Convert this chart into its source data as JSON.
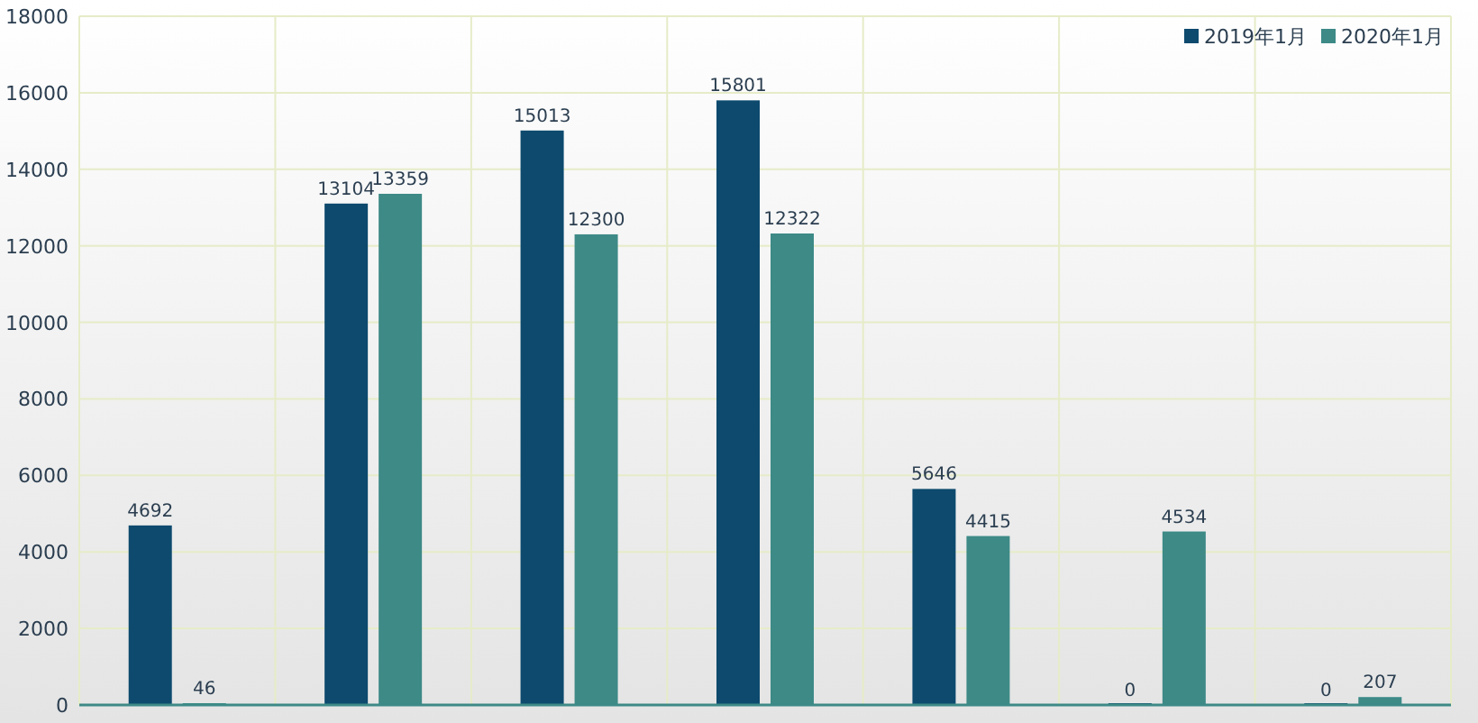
{
  "chart_data": {
    "type": "bar",
    "categories": [
      null,
      null,
      null,
      null,
      null,
      null,
      null
    ],
    "series": [
      {
        "name": "2019年1月",
        "color": "#0d4a6e",
        "values": [
          4692,
          13104,
          15013,
          15801,
          5646,
          0,
          0
        ]
      },
      {
        "name": "2020年1月",
        "color": "#3d8a87",
        "values": [
          46,
          13359,
          12300,
          12322,
          4415,
          4534,
          207
        ]
      }
    ],
    "ylim": [
      0,
      18000
    ],
    "yticks": [
      0,
      2000,
      4000,
      6000,
      8000,
      10000,
      12000,
      14000,
      16000,
      18000
    ],
    "grid": true,
    "legend": "top right",
    "data_labels": true,
    "tick_labels": "y"
  }
}
